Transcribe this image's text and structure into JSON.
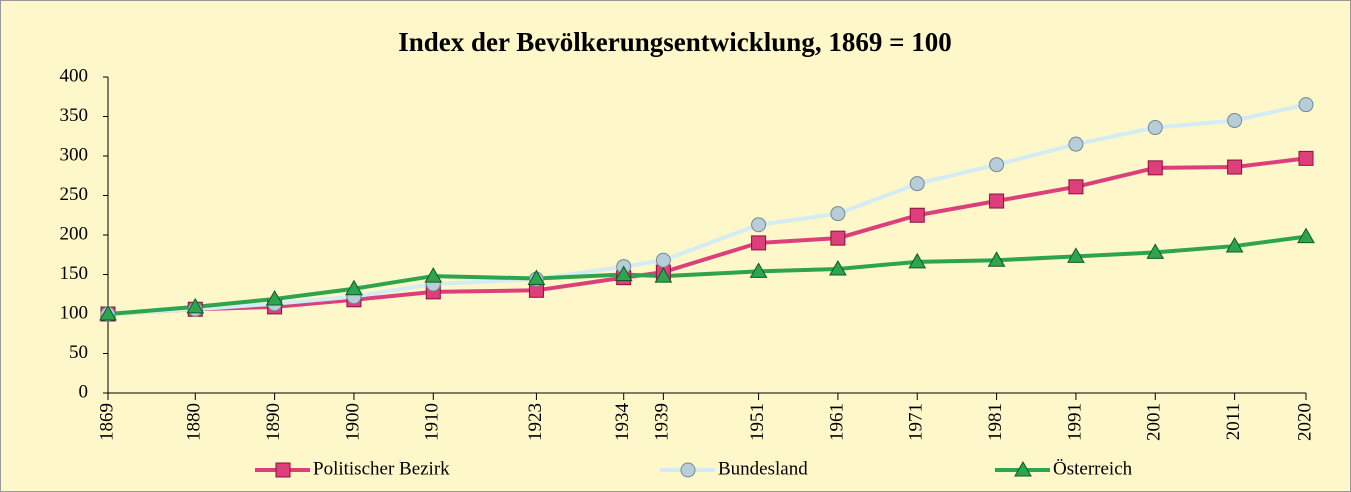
{
  "chart_data": {
    "type": "line",
    "title": "Index der Bevölkerungsentwicklung, 1869 = 100",
    "x": [
      1869,
      1880,
      1890,
      1900,
      1910,
      1923,
      1934,
      1939,
      1951,
      1961,
      1971,
      1981,
      1991,
      2001,
      2011,
      2020
    ],
    "xlim": [
      1869,
      2020
    ],
    "xticks": [
      1869,
      1880,
      1890,
      1900,
      1910,
      1923,
      1934,
      1939,
      1951,
      1961,
      1971,
      1981,
      1991,
      2001,
      2011,
      2020
    ],
    "ylim": [
      0,
      400
    ],
    "yticks": [
      0,
      50,
      100,
      150,
      200,
      250,
      300,
      350,
      400
    ],
    "grid": false,
    "legend": "bottom",
    "series": [
      {
        "name": "Politischer Bezirk",
        "color": "#dd3f7a",
        "marker": "square",
        "values": [
          100,
          106,
          109,
          118,
          128,
          130,
          146,
          153,
          190,
          196,
          225,
          243,
          261,
          285,
          286,
          297
        ]
      },
      {
        "name": "Bundesland",
        "color": "#d4ecf4",
        "marker": "circle",
        "values": [
          100,
          106,
          113,
          122,
          138,
          144,
          160,
          168,
          213,
          227,
          265,
          289,
          315,
          336,
          345,
          365
        ]
      },
      {
        "name": "Österreich",
        "color": "#2ea44f",
        "marker": "triangle",
        "values": [
          100,
          109,
          119,
          132,
          148,
          145,
          150,
          148,
          154,
          157,
          166,
          168,
          173,
          178,
          186,
          198
        ]
      }
    ]
  }
}
